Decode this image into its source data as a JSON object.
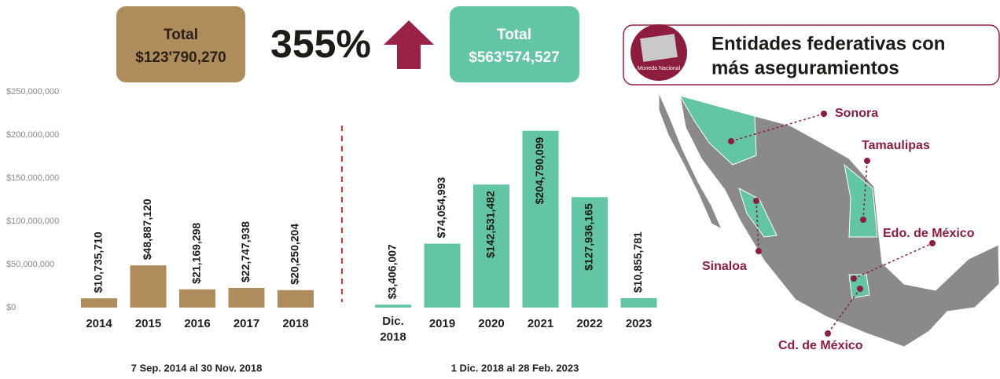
{
  "totals": [
    {
      "label": "Total",
      "value": "$123'790,270"
    },
    {
      "label": "Total",
      "value": "$563'574,527"
    }
  ],
  "change": "355%",
  "chart_data": {
    "type": "bar",
    "categories": [
      "2014",
      "2015",
      "2016",
      "2017",
      "2018",
      "Dic.\n2018",
      "2019",
      "2020",
      "2021",
      "2022",
      "2023"
    ],
    "values": [
      10735710,
      48887120,
      21169298,
      22747938,
      20250204,
      3406007,
      74054993,
      142531482,
      204790099,
      127936165,
      10855781
    ],
    "value_labels": [
      "$10,735,710",
      "$48,887,120",
      "$21,169,298",
      "$22,747,938",
      "$20,250,204",
      "$3,406,007",
      "$74,054,993",
      "$142,531,482",
      "$204,790,099",
      "$127,936,165",
      "$10,855,781"
    ],
    "colors": [
      "#ae8c5c",
      "#ae8c5c",
      "#ae8c5c",
      "#ae8c5c",
      "#ae8c5c",
      "#62c5a5",
      "#62c5a5",
      "#62c5a5",
      "#62c5a5",
      "#62c5a5",
      "#62c5a5"
    ],
    "ylim": [
      0,
      250000000
    ],
    "yticks": [
      {
        "value": 0,
        "label": "$0"
      },
      {
        "value": 50000000,
        "label": "$50,000,000"
      },
      {
        "value": 100000000,
        "label": "$100,000,000"
      },
      {
        "value": 150000000,
        "label": "$150,000,000"
      },
      {
        "value": 200000000,
        "label": "$200,000,000"
      },
      {
        "value": 250000000,
        "label": "$250,000,000"
      }
    ],
    "grid": false,
    "periods": [
      "7 Sep. 2014 al 30 Nov. 2018",
      "1 Dic. 2018 al 28 Feb. 2023"
    ]
  },
  "map": {
    "title_lines": [
      "Entidades federativas con",
      "más aseguramientos"
    ],
    "icon_label": "Moneda Nacional",
    "states": [
      "Sonora",
      "Tamaulipas",
      "Edo. de México",
      "Sinaloa",
      "Cd. de México"
    ]
  }
}
